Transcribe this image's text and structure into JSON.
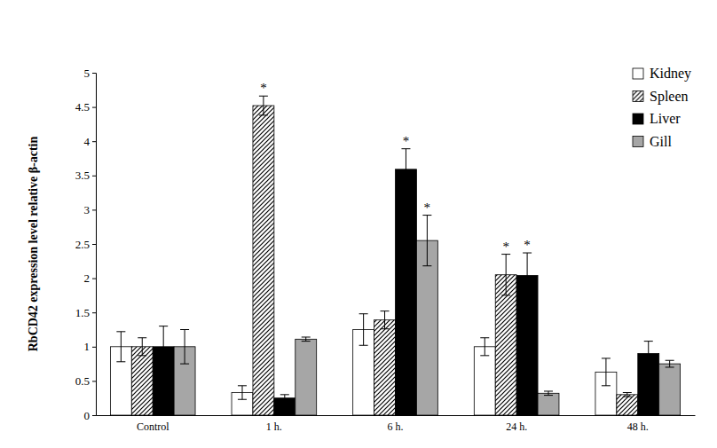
{
  "chart_data": {
    "type": "bar",
    "y_label": "RbCD42 expression level relative β-actin",
    "categories": [
      "Control",
      "1 h.",
      "6 h.",
      "24 h.",
      "48 h."
    ],
    "series": [
      {
        "name": "Kidney",
        "color": "#ffffff",
        "values": [
          1.0,
          0.33,
          1.25,
          1.0,
          0.63
        ],
        "errors": [
          0.22,
          0.1,
          0.23,
          0.13,
          0.2
        ]
      },
      {
        "name": "Spleen",
        "color": "#000000",
        "values": [
          1.0,
          4.52,
          1.39,
          2.05,
          0.3
        ],
        "errors": [
          0.13,
          0.14,
          0.13,
          0.3,
          0.03
        ]
      },
      {
        "name": "Liver",
        "color": "#000000",
        "values": [
          1.0,
          0.25,
          3.59,
          2.04,
          0.9
        ],
        "errors": [
          0.3,
          0.05,
          0.3,
          0.33,
          0.18
        ]
      },
      {
        "name": "Gill",
        "color": "#a6a6a6",
        "values": [
          1.0,
          1.11,
          2.55,
          0.32,
          0.75
        ],
        "errors": [
          0.25,
          0.03,
          0.37,
          0.03,
          0.05
        ]
      }
    ],
    "annotations": [
      {
        "text": "*",
        "series": "Spleen",
        "category": "1 h."
      },
      {
        "text": "*",
        "series": "Liver",
        "category": "6 h."
      },
      {
        "text": "*",
        "series": "Gill",
        "category": "6 h."
      },
      {
        "text": "*",
        "series": "Spleen",
        "category": "24 h."
      },
      {
        "text": "*",
        "series": "Liver",
        "category": "24 h."
      }
    ],
    "ylim": [
      0,
      5
    ],
    "yticks": [
      0,
      0.5,
      1,
      1.5,
      2,
      2.5,
      3,
      3.5,
      4,
      4.5,
      5
    ],
    "grid": false,
    "legend": "top-right"
  }
}
